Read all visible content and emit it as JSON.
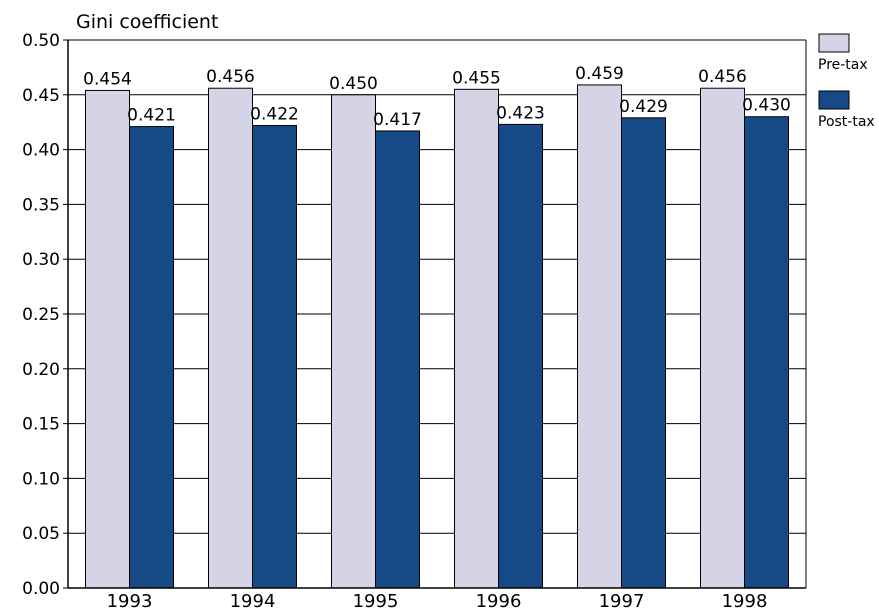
{
  "chart_data": {
    "type": "bar",
    "ylabel": "Gini coefficient",
    "xlabel": "",
    "categories": [
      "1993",
      "1994",
      "1995",
      "1996",
      "1997",
      "1998"
    ],
    "series": [
      {
        "name": "Pre-tax",
        "values": [
          0.454,
          0.456,
          0.45,
          0.455,
          0.459,
          0.456
        ],
        "color": "#d4d4e6"
      },
      {
        "name": "Post-tax",
        "values": [
          0.421,
          0.422,
          0.417,
          0.423,
          0.429,
          0.43
        ],
        "color": "#154a86"
      }
    ],
    "data_labels": {
      "Pre-tax": [
        "0.454",
        "0.456",
        "0.450",
        "0.455",
        "0.459",
        "0.456"
      ],
      "Post-tax": [
        "0.421",
        "0.422",
        "0.417",
        "0.423",
        "0.429",
        "0.430"
      ]
    },
    "ylim": [
      0,
      0.5
    ],
    "yticks": [
      "0.00",
      "0.05",
      "0.10",
      "0.15",
      "0.20",
      "0.25",
      "0.30",
      "0.35",
      "0.40",
      "0.45",
      "0.50"
    ],
    "ytick_values": [
      0,
      0.05,
      0.1,
      0.15,
      0.2,
      0.25,
      0.3,
      0.35,
      0.4,
      0.45,
      0.5
    ],
    "grid": true,
    "legend_position": "right"
  }
}
